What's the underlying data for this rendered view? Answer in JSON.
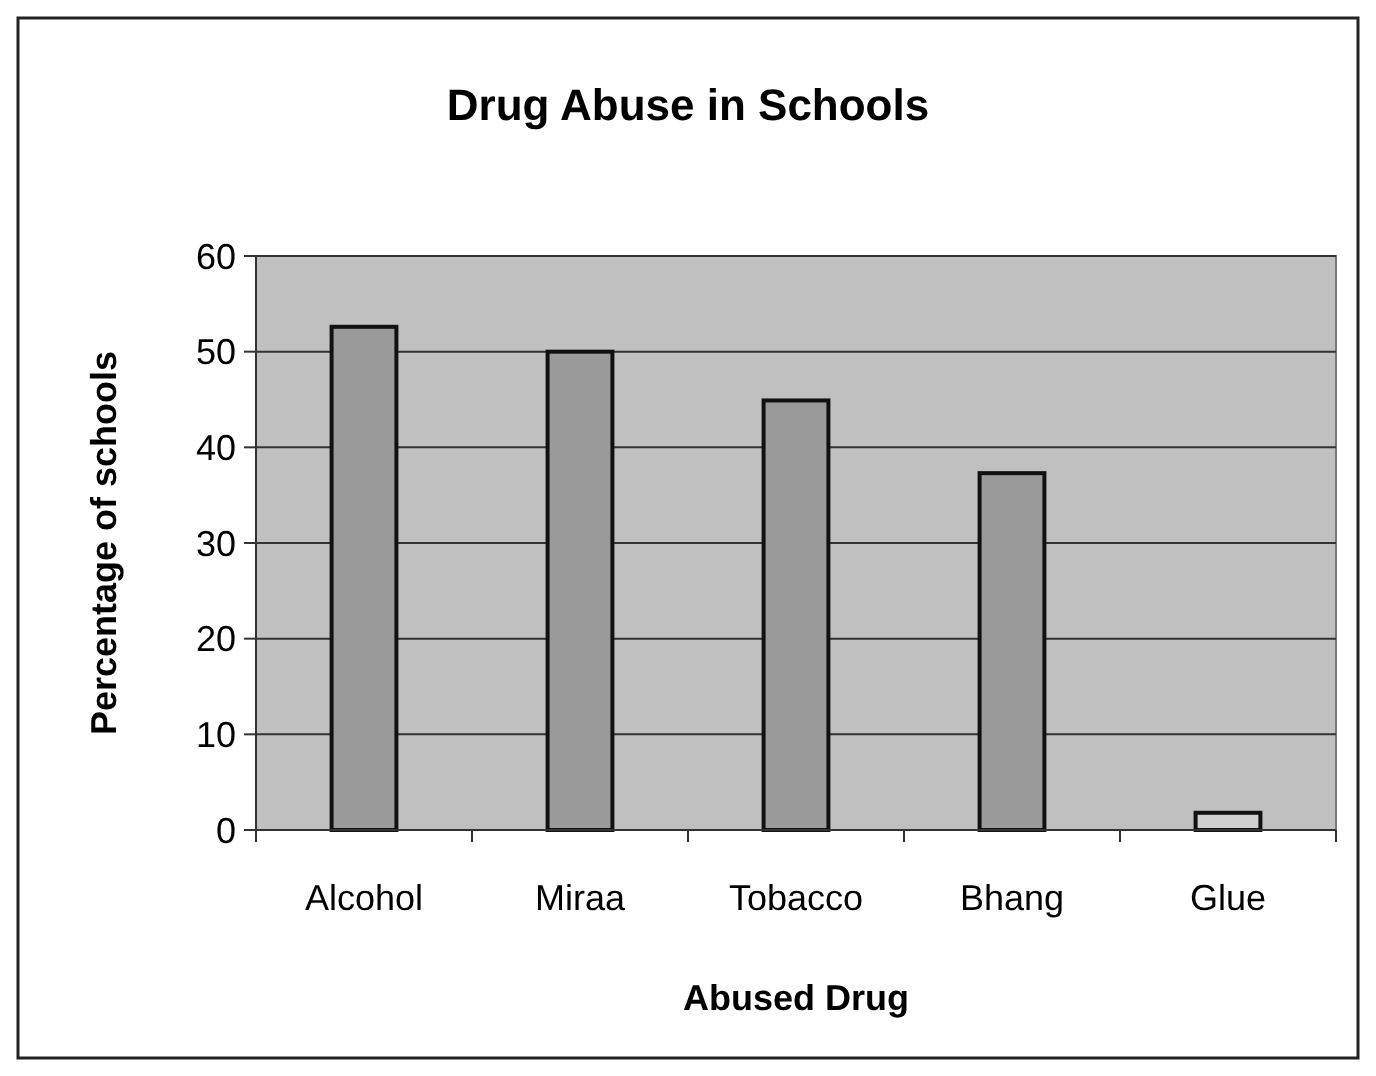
{
  "chart_data": {
    "type": "bar",
    "title": "Drug Abuse in Schools",
    "xlabel": "Abused Drug",
    "ylabel": "Percentage of schools",
    "categories": [
      "Alcohol",
      "Miraa",
      "Tobacco",
      "Bhang",
      "Glue"
    ],
    "values": [
      52.6,
      50,
      44.9,
      37.3,
      1.8
    ],
    "colors": [
      "#9a9a9a",
      "#9a9a9a",
      "#9a9a9a",
      "#9a9a9a",
      "#d0d0d0"
    ],
    "ylim": [
      0,
      60
    ],
    "yticks": [
      0,
      10,
      20,
      30,
      40,
      50,
      60
    ],
    "grid": "y"
  }
}
